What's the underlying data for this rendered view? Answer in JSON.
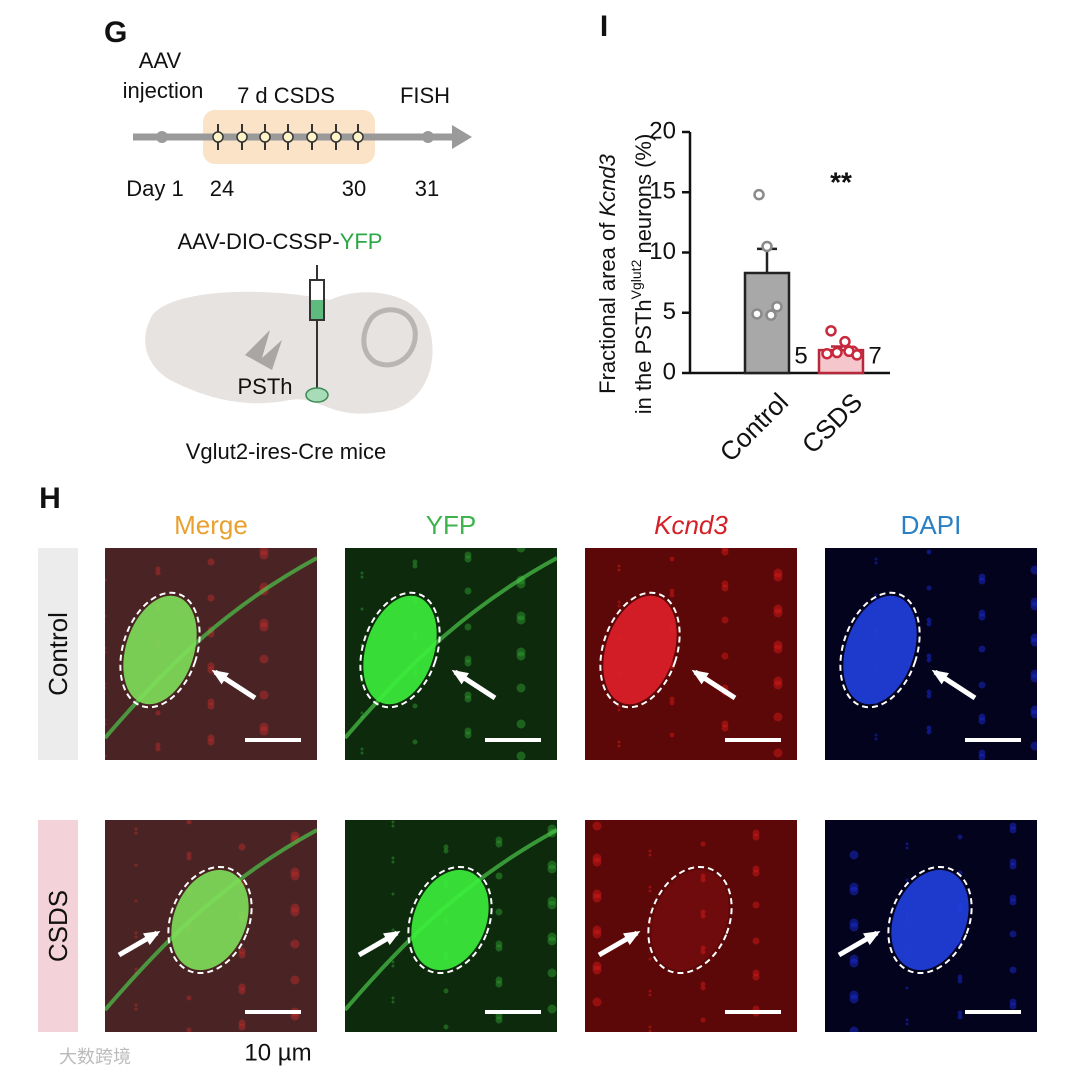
{
  "panel_g": {
    "label": "G",
    "injection": [
      "AAV",
      "injection"
    ],
    "stress": "7 d CSDS",
    "assay": "FISH",
    "days": [
      "Day 1",
      "24",
      "30",
      "31"
    ],
    "construct": [
      "AAV-DIO-CSSP-",
      "YFP"
    ],
    "region": "PSTh",
    "mice": "Vglut2-ires-Cre mice"
  },
  "chart_data": {
    "type": "bar",
    "panel_label": "I",
    "ylabel": {
      "line1": [
        "Fractional area of ",
        "Kcnd3"
      ],
      "line2": [
        "in the PSTh",
        "Vglut2",
        " neurons (%)"
      ]
    },
    "categories": [
      "Control",
      "CSDS"
    ],
    "values": [
      8.3,
      1.9
    ],
    "errors": [
      2.0,
      0.3
    ],
    "points": [
      [
        14.8,
        10.5,
        5.5,
        4.9,
        4.8
      ],
      [
        3.5,
        2.6,
        1.8,
        1.6,
        1.7,
        1.8,
        1.5
      ]
    ],
    "n_labels": [
      5,
      7
    ],
    "significance": "**",
    "colors": [
      "#a8a8a8",
      "#f5c6cc"
    ],
    "edge_colors": [
      "#222222",
      "#b8283c"
    ],
    "point_colors": [
      "#8a8a8a",
      "#c8283c"
    ],
    "ylim": [
      0,
      20
    ],
    "yticks": [
      0,
      5,
      10,
      15,
      20
    ]
  },
  "panel_h": {
    "label": "H",
    "columns": [
      "Merge",
      "YFP",
      "Kcnd3",
      "DAPI"
    ],
    "rows": [
      "Control",
      "CSDS"
    ],
    "scale_bar": "10 µm"
  },
  "watermark": "大数跨境"
}
